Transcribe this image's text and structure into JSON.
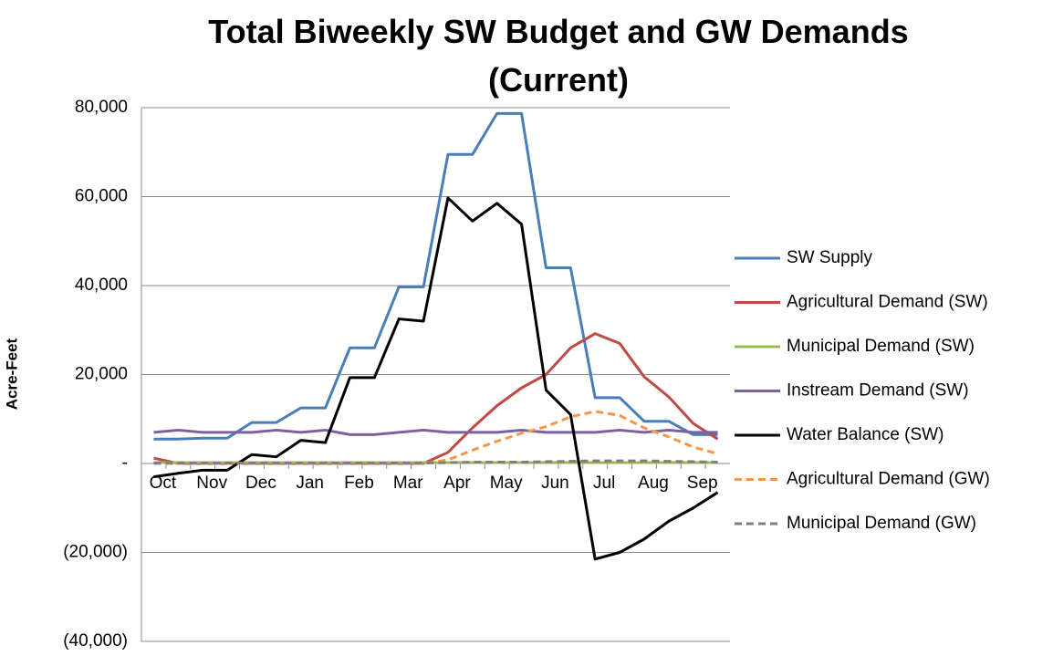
{
  "chart_data": {
    "type": "line",
    "title": "Total Biweekly SW Budget and GW Demands (Current)",
    "y_label": "Acre-Feet",
    "categories": [
      "Oct",
      null,
      "Nov",
      null,
      "Dec",
      null,
      "Jan",
      null,
      "Feb",
      null,
      "Mar",
      null,
      "Apr",
      null,
      "May",
      null,
      "Jun",
      null,
      "Jul",
      null,
      "Aug",
      null,
      "Sep",
      null
    ],
    "ylim": [
      -40000,
      80000
    ],
    "yticks": [
      {
        "value": 80000,
        "label": "80,000"
      },
      {
        "value": 60000,
        "label": "60,000"
      },
      {
        "value": 40000,
        "label": "40,000"
      },
      {
        "value": 20000,
        "label": "20,000"
      },
      {
        "value": 0,
        "label": "-"
      },
      {
        "value": -20000,
        "label": "(20,000)"
      },
      {
        "value": -40000,
        "label": "(40,000)"
      }
    ],
    "grid": true,
    "legend": "right",
    "series": [
      {
        "name": "SW Supply",
        "color": "#4a7ebb",
        "dashed": false,
        "values": [
          5500,
          5500,
          5700,
          5700,
          9200,
          9200,
          12500,
          12500,
          26000,
          26000,
          39700,
          39700,
          69500,
          69500,
          78700,
          78700,
          44000,
          44000,
          14800,
          14800,
          9500,
          9500,
          6500,
          6500
        ]
      },
      {
        "name": "Agricultural Demand (SW)",
        "color": "#be4b48",
        "dashed": false,
        "values": [
          1200,
          0,
          0,
          0,
          0,
          0,
          0,
          0,
          0,
          0,
          0,
          0,
          2500,
          8000,
          13000,
          17000,
          20000,
          26000,
          29200,
          27000,
          19500,
          15000,
          9000,
          5500
        ]
      },
      {
        "name": "Municipal Demand (SW)",
        "color": "#98b954",
        "dashed": false,
        "values": [
          200,
          200,
          200,
          200,
          200,
          200,
          200,
          200,
          200,
          200,
          200,
          200,
          200,
          200,
          200,
          200,
          200,
          200,
          200,
          200,
          200,
          200,
          200,
          200
        ]
      },
      {
        "name": "Instream Demand (SW)",
        "color": "#7d60a0",
        "dashed": false,
        "values": [
          7000,
          7500,
          7000,
          7000,
          7000,
          7500,
          7000,
          7500,
          6500,
          6500,
          7000,
          7500,
          7000,
          7000,
          7000,
          7500,
          7000,
          7000,
          7000,
          7500,
          7000,
          7500,
          7000,
          7000
        ]
      },
      {
        "name": "Water Balance (SW)",
        "color": "#000000",
        "dashed": false,
        "values": [
          -3000,
          -2200,
          -1500,
          -1500,
          2000,
          1500,
          5200,
          4700,
          19300,
          19300,
          32500,
          32000,
          59700,
          54500,
          58500,
          53800,
          16500,
          11000,
          -21500,
          -20000,
          -17000,
          -13000,
          -10000,
          -6500
        ]
      },
      {
        "name": "Agricultural Demand (GW)",
        "color": "#f79646",
        "dashed": true,
        "values": [
          0,
          0,
          0,
          0,
          0,
          0,
          0,
          0,
          0,
          0,
          0,
          0,
          800,
          3000,
          5000,
          6800,
          8300,
          10500,
          11700,
          10800,
          8000,
          6000,
          3700,
          2200
        ]
      },
      {
        "name": "Municipal Demand (GW)",
        "color": "#7f7f7f",
        "dashed": true,
        "values": [
          100,
          100,
          100,
          100,
          100,
          100,
          100,
          100,
          100,
          100,
          100,
          100,
          200,
          300,
          300,
          300,
          400,
          500,
          600,
          600,
          600,
          500,
          400,
          300
        ]
      }
    ]
  }
}
